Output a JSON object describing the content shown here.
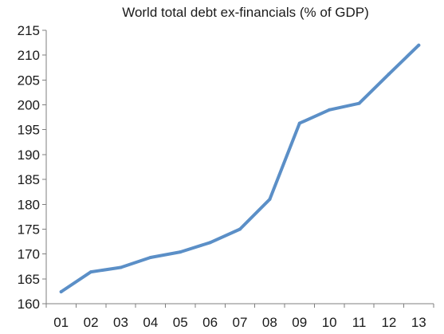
{
  "chart_data": {
    "type": "line",
    "title": "World total debt ex-financials (% of GDP)",
    "xlabel": "",
    "ylabel": "",
    "categories": [
      "01",
      "02",
      "03",
      "04",
      "05",
      "06",
      "07",
      "08",
      "09",
      "10",
      "11",
      "12",
      "13"
    ],
    "series": [
      {
        "values": [
          162.4,
          166.4,
          167.3,
          169.3,
          170.4,
          172.3,
          175.0,
          181.0,
          196.3,
          199.0,
          200.3,
          206.2,
          212.0
        ],
        "color": "#5b8fc7"
      }
    ],
    "yticks": [
      "160",
      "165",
      "170",
      "175",
      "180",
      "185",
      "190",
      "195",
      "200",
      "205",
      "210",
      "215"
    ],
    "ylim": [
      160,
      215
    ],
    "grid": false,
    "legend": "none"
  }
}
